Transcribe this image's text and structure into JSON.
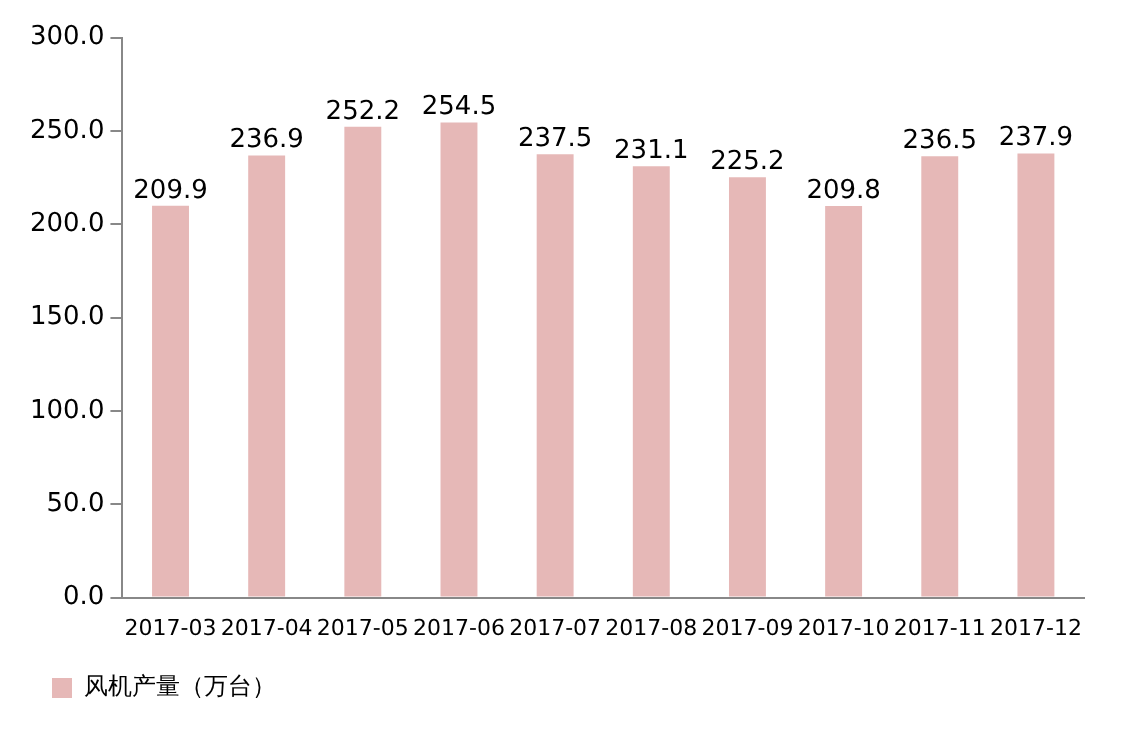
{
  "chart_data": {
    "type": "bar",
    "categories": [
      "2017-03",
      "2017-04",
      "2017-05",
      "2017-06",
      "2017-07",
      "2017-08",
      "2017-09",
      "2017-10",
      "2017-11",
      "2017-12"
    ],
    "series": [
      {
        "name": "风机产量（万台）",
        "color": "#e6b8b7",
        "values": [
          209.9,
          236.9,
          252.2,
          254.5,
          237.5,
          231.1,
          225.2,
          209.8,
          236.5,
          237.9
        ]
      }
    ],
    "ylim": [
      0,
      300
    ],
    "yticks": [
      {
        "value": 0,
        "label": "0.0"
      },
      {
        "value": 50,
        "label": "50.0"
      },
      {
        "value": 100,
        "label": "100.0"
      },
      {
        "value": 150,
        "label": "150.0"
      },
      {
        "value": 200,
        "label": "200.0"
      },
      {
        "value": 250,
        "label": "250.0"
      },
      {
        "value": 300,
        "label": "300.0"
      }
    ],
    "grid": false,
    "legend": "bottom left",
    "data_labels": true
  }
}
